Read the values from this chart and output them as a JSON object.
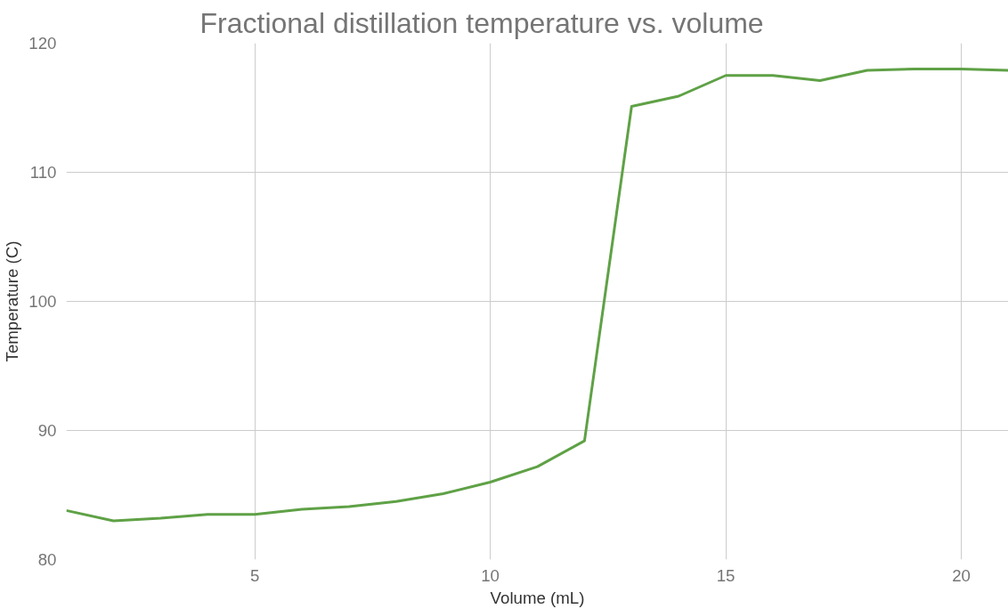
{
  "chart_data": {
    "type": "line",
    "title": "Fractional distillation temperature vs. volume",
    "xlabel": "Volume (mL)",
    "ylabel": "Temperature (C)",
    "x": [
      1,
      2,
      3,
      4,
      5,
      6,
      7,
      8,
      9,
      10,
      11,
      12,
      13,
      14,
      15,
      16,
      17,
      18,
      19,
      20,
      21
    ],
    "series": [
      {
        "color": "#5fa146",
        "values": [
          83.8,
          83.0,
          83.2,
          83.5,
          83.5,
          83.9,
          84.1,
          84.5,
          85.1,
          86.0,
          87.2,
          89.2,
          115.1,
          115.9,
          117.5,
          117.5,
          117.1,
          117.9,
          118.0,
          118.0,
          117.9
        ]
      }
    ],
    "xlim": [
      1,
      21
    ],
    "xticks": [
      5,
      10,
      15,
      20
    ],
    "ylim": [
      80,
      120
    ],
    "yticks": [
      80,
      90,
      100,
      110,
      120
    ],
    "grid": true,
    "marker": "none",
    "line_style": "solid"
  }
}
